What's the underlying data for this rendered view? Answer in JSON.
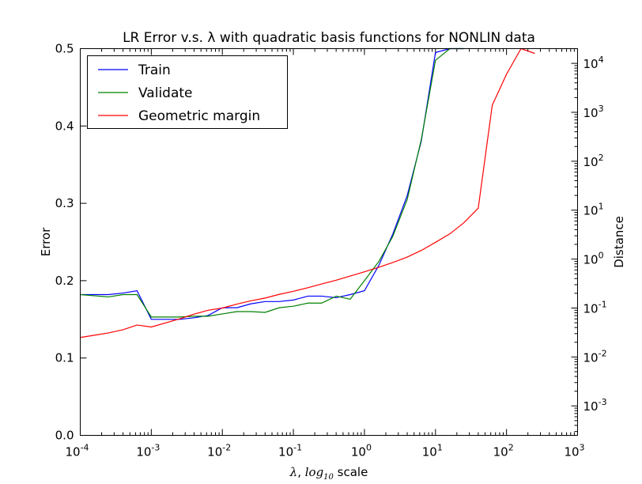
{
  "chart_data": {
    "type": "line",
    "title": "LR Error v.s. λ with quadratic basis functions for NONLIN data",
    "xlabel": "λ, log10 scale",
    "ylabel_left": "Error",
    "ylabel_right": "Distance",
    "x_scale": "log",
    "xlim": [
      0.0001,
      1000
    ],
    "ylim_left": [
      0.0,
      0.5
    ],
    "ylim_right": [
      0.00025,
      20000
    ],
    "right_scale": "log",
    "x_ticks": [
      {
        "value": 0.0001,
        "base": "10",
        "exp": "-4"
      },
      {
        "value": 0.001,
        "base": "10",
        "exp": "-3"
      },
      {
        "value": 0.01,
        "base": "10",
        "exp": "-2"
      },
      {
        "value": 0.1,
        "base": "10",
        "exp": "-1"
      },
      {
        "value": 1,
        "base": "10",
        "exp": "0"
      },
      {
        "value": 10,
        "base": "10",
        "exp": "1"
      },
      {
        "value": 100,
        "base": "10",
        "exp": "2"
      },
      {
        "value": 1000,
        "base": "10",
        "exp": "3"
      }
    ],
    "left_ticks": [
      {
        "value": 0.0,
        "label": "0.0"
      },
      {
        "value": 0.1,
        "label": "0.1"
      },
      {
        "value": 0.2,
        "label": "0.2"
      },
      {
        "value": 0.3,
        "label": "0.3"
      },
      {
        "value": 0.4,
        "label": "0.4"
      },
      {
        "value": 0.5,
        "label": "0.5"
      }
    ],
    "right_ticks": [
      {
        "value": 0.001,
        "base": "10",
        "exp": "-3"
      },
      {
        "value": 0.01,
        "base": "10",
        "exp": "-2"
      },
      {
        "value": 0.1,
        "base": "10",
        "exp": "-1"
      },
      {
        "value": 1,
        "base": "10",
        "exp": "0"
      },
      {
        "value": 10,
        "base": "10",
        "exp": "1"
      },
      {
        "value": 100,
        "base": "10",
        "exp": "2"
      },
      {
        "value": 1000,
        "base": "10",
        "exp": "3"
      },
      {
        "value": 10000,
        "base": "10",
        "exp": "4"
      }
    ],
    "legend_position": "top-left",
    "grid": false,
    "series": [
      {
        "name": "Train",
        "axis": "left",
        "color": "#0000ff",
        "points": [
          [
            0.0001,
            0.182
          ],
          [
            0.00025,
            0.182
          ],
          [
            0.0004,
            0.184
          ],
          [
            0.00063,
            0.187
          ],
          [
            0.001,
            0.15
          ],
          [
            0.0025,
            0.15
          ],
          [
            0.004,
            0.152
          ],
          [
            0.0063,
            0.155
          ],
          [
            0.01,
            0.165
          ],
          [
            0.016,
            0.165
          ],
          [
            0.025,
            0.17
          ],
          [
            0.04,
            0.173
          ],
          [
            0.063,
            0.173
          ],
          [
            0.1,
            0.175
          ],
          [
            0.16,
            0.18
          ],
          [
            0.25,
            0.18
          ],
          [
            0.4,
            0.178
          ],
          [
            0.63,
            0.182
          ],
          [
            1.0,
            0.187
          ],
          [
            1.6,
            0.22
          ],
          [
            2.5,
            0.26
          ],
          [
            4.0,
            0.31
          ],
          [
            6.3,
            0.38
          ],
          [
            10,
            0.495
          ],
          [
            16,
            0.5
          ],
          [
            25,
            0.5
          ]
        ]
      },
      {
        "name": "Validate",
        "axis": "left",
        "color": "#008000",
        "points": [
          [
            0.0001,
            0.182
          ],
          [
            0.00025,
            0.179
          ],
          [
            0.0004,
            0.182
          ],
          [
            0.00063,
            0.182
          ],
          [
            0.001,
            0.153
          ],
          [
            0.0025,
            0.153
          ],
          [
            0.004,
            0.154
          ],
          [
            0.0063,
            0.154
          ],
          [
            0.01,
            0.157
          ],
          [
            0.016,
            0.16
          ],
          [
            0.025,
            0.16
          ],
          [
            0.04,
            0.159
          ],
          [
            0.063,
            0.165
          ],
          [
            0.1,
            0.167
          ],
          [
            0.16,
            0.171
          ],
          [
            0.25,
            0.171
          ],
          [
            0.4,
            0.18
          ],
          [
            0.63,
            0.176
          ],
          [
            1.0,
            0.2
          ],
          [
            1.6,
            0.225
          ],
          [
            2.5,
            0.257
          ],
          [
            4.0,
            0.305
          ],
          [
            6.3,
            0.382
          ],
          [
            10,
            0.485
          ],
          [
            16,
            0.5
          ],
          [
            25,
            0.5
          ]
        ]
      },
      {
        "name": "Geometric margin",
        "axis": "right",
        "color": "#ff0000",
        "points": [
          [
            0.0001,
            0.025
          ],
          [
            0.00025,
            0.031
          ],
          [
            0.0004,
            0.036
          ],
          [
            0.00063,
            0.045
          ],
          [
            0.001,
            0.041
          ],
          [
            0.0025,
            0.06
          ],
          [
            0.004,
            0.075
          ],
          [
            0.0063,
            0.09
          ],
          [
            0.01,
            0.1
          ],
          [
            0.016,
            0.12
          ],
          [
            0.025,
            0.14
          ],
          [
            0.04,
            0.16
          ],
          [
            0.063,
            0.19
          ],
          [
            0.1,
            0.22
          ],
          [
            0.16,
            0.26
          ],
          [
            0.25,
            0.31
          ],
          [
            0.4,
            0.37
          ],
          [
            0.63,
            0.45
          ],
          [
            1.0,
            0.55
          ],
          [
            1.6,
            0.68
          ],
          [
            2.5,
            0.85
          ],
          [
            4.0,
            1.1
          ],
          [
            6.3,
            1.5
          ],
          [
            10,
            2.2
          ],
          [
            16,
            3.3
          ],
          [
            25,
            5.5
          ],
          [
            40,
            11
          ],
          [
            63,
            1400
          ],
          [
            100,
            6000
          ],
          [
            160,
            20000
          ],
          [
            250,
            16000
          ]
        ]
      }
    ]
  }
}
